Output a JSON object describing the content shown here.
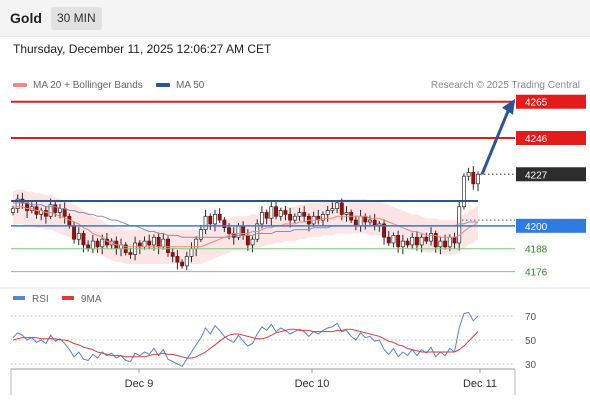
{
  "header": {
    "symbol": "Gold",
    "timeframe": "30 MIN",
    "datetime": "Thursday, December 11, 2025 12:06:27 AM CET"
  },
  "legend": {
    "ma20_label": "MA 20 + Bollinger Bands",
    "ma20_color": "#f4877f",
    "ma50_label": "MA 50",
    "ma50_color": "#2c5592",
    "copyright": "Research © 2025 Trading Central"
  },
  "rsi_legend": {
    "rsi_label": "RSI",
    "rsi_color": "#5b82d6",
    "ma_label": "9MA",
    "ma_color": "#e23a3a"
  },
  "chart_data": [
    {
      "type": "candlestick",
      "x_ticks": [
        "Dec 9",
        "Dec 10",
        "Dec 11"
      ],
      "price_range": [
        4169,
        4268
      ],
      "current_price": 4227,
      "levels": [
        {
          "value": 4265,
          "label": "4265",
          "kind": "resistance",
          "color": "#e31b1b"
        },
        {
          "value": 4246,
          "label": "4246",
          "kind": "resistance",
          "color": "#e31b1b"
        },
        {
          "value": 4227,
          "label": "4227",
          "kind": "last",
          "color": "#2d2d2d"
        },
        {
          "value": 4200,
          "label": "4200",
          "kind": "pivot",
          "color": "#2f7be0"
        },
        {
          "value": 4188,
          "label": "4188",
          "kind": "support",
          "color": "#2a8a2a"
        },
        {
          "value": 4176,
          "label": "4176",
          "kind": "support",
          "color": "#2a8a2a"
        }
      ],
      "channel_level": 4213,
      "target_arrow": {
        "from": 4227,
        "to": 4265
      },
      "close": [
        4209,
        4214,
        4212,
        4208,
        4210,
        4206,
        4208,
        4205,
        4211,
        4207,
        4209,
        4205,
        4200,
        4193,
        4196,
        4190,
        4188,
        4192,
        4189,
        4193,
        4190,
        4192,
        4188,
        4190,
        4186,
        4185,
        4191,
        4189,
        4192,
        4190,
        4194,
        4189,
        4193,
        4186,
        4184,
        4181,
        4179,
        4184,
        4188,
        4193,
        4198,
        4205,
        4201,
        4206,
        4203,
        4199,
        4196,
        4194,
        4200,
        4195,
        4190,
        4193,
        4201,
        4207,
        4204,
        4210,
        4205,
        4208,
        4206,
        4203,
        4205,
        4207,
        4205,
        4201,
        4205,
        4203,
        4206,
        4208,
        4209,
        4212,
        4206,
        4207,
        4203,
        4200,
        4205,
        4202,
        4203,
        4200,
        4201,
        4194,
        4191,
        4195,
        4189,
        4192,
        4190,
        4194,
        4190,
        4194,
        4192,
        4196,
        4189,
        4192,
        4189,
        4194,
        4191,
        4210,
        4226,
        4228,
        4222,
        4227
      ],
      "ma20": [
        4209,
        4210,
        4210,
        4209,
        4209,
        4208,
        4208,
        4207,
        4207,
        4206,
        4205,
        4204,
        4203,
        4202,
        4201,
        4199,
        4198,
        4196,
        4195,
        4194,
        4192,
        4191,
        4190,
        4190,
        4189,
        4189,
        4189,
        4189,
        4189,
        4189,
        4189,
        4189,
        4189,
        4189,
        4189,
        4189,
        4189,
        4189,
        4189,
        4189,
        4189,
        4190,
        4191,
        4192,
        4193,
        4194,
        4195,
        4196,
        4196,
        4196,
        4196,
        4197,
        4197,
        4198,
        4199,
        4199,
        4200,
        4200,
        4201,
        4201,
        4201,
        4202,
        4202,
        4203,
        4203,
        4203,
        4204,
        4204,
        4204,
        4205,
        4205,
        4205,
        4205,
        4205,
        4205,
        4205,
        4204,
        4204,
        4204,
        4203,
        4202,
        4201,
        4200,
        4199,
        4198,
        4197,
        4197,
        4196,
        4195,
        4195,
        4195,
        4194,
        4194,
        4194,
        4194,
        4195,
        4197,
        4199,
        4200,
        4202
      ],
      "ma50": [
        4212,
        4212,
        4212,
        4212,
        4211,
        4211,
        4211,
        4210,
        4210,
        4210,
        4209,
        4209,
        4208,
        4208,
        4207,
        4207,
        4206,
        4206,
        4205,
        4205,
        4204,
        4203,
        4203,
        4202,
        4201,
        4200,
        4200,
        4199,
        4198,
        4197,
        4197,
        4196,
        4196,
        4195,
        4195,
        4195,
        4194,
        4194,
        4194,
        4194,
        4194,
        4194,
        4194,
        4194,
        4194,
        4194,
        4194,
        4195,
        4195,
        4195,
        4195,
        4195,
        4196,
        4196,
        4196,
        4196,
        4197,
        4197,
        4197,
        4197,
        4198,
        4198,
        4198,
        4198,
        4199,
        4199,
        4199,
        4199,
        4200,
        4200,
        4200,
        4200,
        4200,
        4200,
        4200,
        4200,
        4200,
        4200,
        4200,
        4200,
        4200,
        4200,
        4200,
        4200,
        4200,
        4200,
        4200,
        4200,
        4200,
        4200,
        4200,
        4200,
        4200,
        4200,
        4200,
        4201,
        4201,
        4202,
        4202,
        4202
      ],
      "bb_width": 9
    },
    {
      "type": "line",
      "name": "RSI",
      "ylim": [
        20,
        80
      ],
      "y_ticks": [
        70,
        50,
        30
      ],
      "series": [
        {
          "name": "RSI",
          "values": [
            52,
            56,
            54,
            50,
            52,
            48,
            50,
            47,
            54,
            49,
            51,
            47,
            42,
            36,
            40,
            34,
            33,
            38,
            35,
            40,
            37,
            39,
            35,
            37,
            33,
            32,
            39,
            37,
            40,
            38,
            43,
            37,
            42,
            34,
            32,
            30,
            28,
            34,
            40,
            46,
            52,
            60,
            55,
            62,
            58,
            53,
            50,
            48,
            54,
            49,
            45,
            47,
            55,
            61,
            58,
            63,
            57,
            60,
            58,
            55,
            57,
            59,
            57,
            53,
            57,
            55,
            58,
            60,
            61,
            64,
            57,
            58,
            53,
            50,
            56,
            52,
            53,
            49,
            50,
            42,
            38,
            43,
            36,
            40,
            37,
            42,
            37,
            42,
            39,
            44,
            36,
            40,
            37,
            43,
            40,
            60,
            72,
            73,
            66,
            70
          ]
        },
        {
          "name": "9MA",
          "values": [
            50,
            51,
            52,
            52,
            52,
            52,
            51,
            51,
            51,
            51,
            50,
            50,
            49,
            47,
            46,
            44,
            43,
            42,
            40,
            39,
            38,
            37,
            37,
            37,
            36,
            36,
            36,
            36,
            36,
            37,
            38,
            38,
            39,
            38,
            38,
            37,
            36,
            35,
            35,
            36,
            38,
            40,
            43,
            46,
            49,
            52,
            54,
            55,
            55,
            54,
            53,
            52,
            51,
            51,
            52,
            54,
            56,
            57,
            58,
            59,
            59,
            58,
            58,
            58,
            57,
            57,
            57,
            57,
            57,
            58,
            58,
            59,
            59,
            58,
            57,
            56,
            55,
            54,
            53,
            51,
            49,
            48,
            46,
            45,
            43,
            42,
            41,
            40,
            40,
            40,
            40,
            40,
            40,
            40,
            40,
            42,
            45,
            49,
            53,
            57
          ]
        }
      ]
    }
  ]
}
